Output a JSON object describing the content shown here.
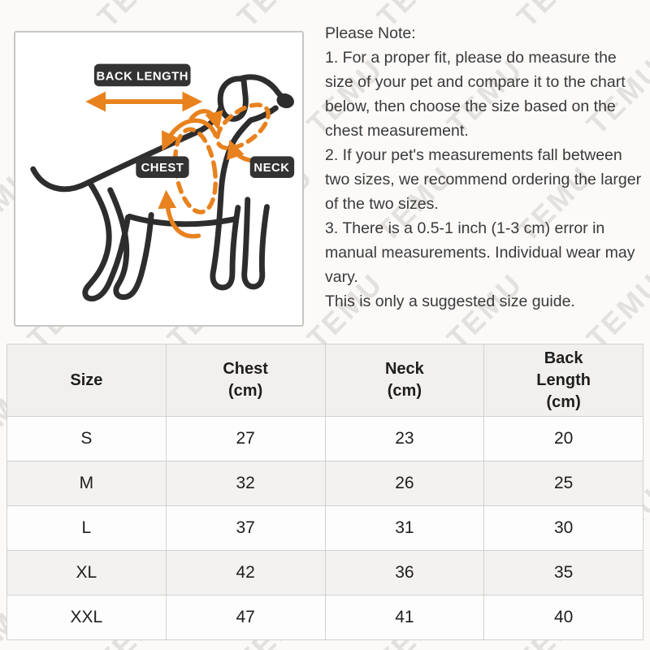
{
  "watermark": {
    "text": "TEMU",
    "color": "rgba(178,172,166,0.33)"
  },
  "diagram": {
    "labels": {
      "back_length": "BACK LENGTH",
      "chest": "CHEST",
      "neck": "NECK"
    },
    "colors": {
      "accent_orange": "#E8821E",
      "dog_outline": "#2D2D2D",
      "label_bg": "#333333",
      "label_text": "#FFFFFF"
    }
  },
  "note": {
    "title": "Please Note:",
    "paragraphs": [
      "1. For a proper fit, please do measure the size of your pet and compare it to the chart below, then choose the size based on the chest measurement.",
      "2. If your pet's measurements fall between two sizes, we recommend ordering the larger of the two sizes.",
      "3. There is a 0.5-1 inch (1-3 cm) error in manual measurements. Individual wear may vary.",
      "This is only a suggested size guide."
    ]
  },
  "chart_data": {
    "type": "table",
    "title": "Pet size chart",
    "columns": [
      {
        "lines": [
          "Size"
        ]
      },
      {
        "lines": [
          "Chest",
          "(cm)"
        ]
      },
      {
        "lines": [
          "Neck",
          "(cm)"
        ]
      },
      {
        "lines": [
          "Back",
          "Length",
          "(cm)"
        ]
      }
    ],
    "rows": [
      {
        "size": "S",
        "chest": 27,
        "neck": 23,
        "back_length": 20
      },
      {
        "size": "M",
        "chest": 32,
        "neck": 26,
        "back_length": 25
      },
      {
        "size": "L",
        "chest": 37,
        "neck": 31,
        "back_length": 30
      },
      {
        "size": "XL",
        "chest": 42,
        "neck": 36,
        "back_length": 35
      },
      {
        "size": "XXL",
        "chest": 47,
        "neck": 41,
        "back_length": 40
      }
    ]
  }
}
